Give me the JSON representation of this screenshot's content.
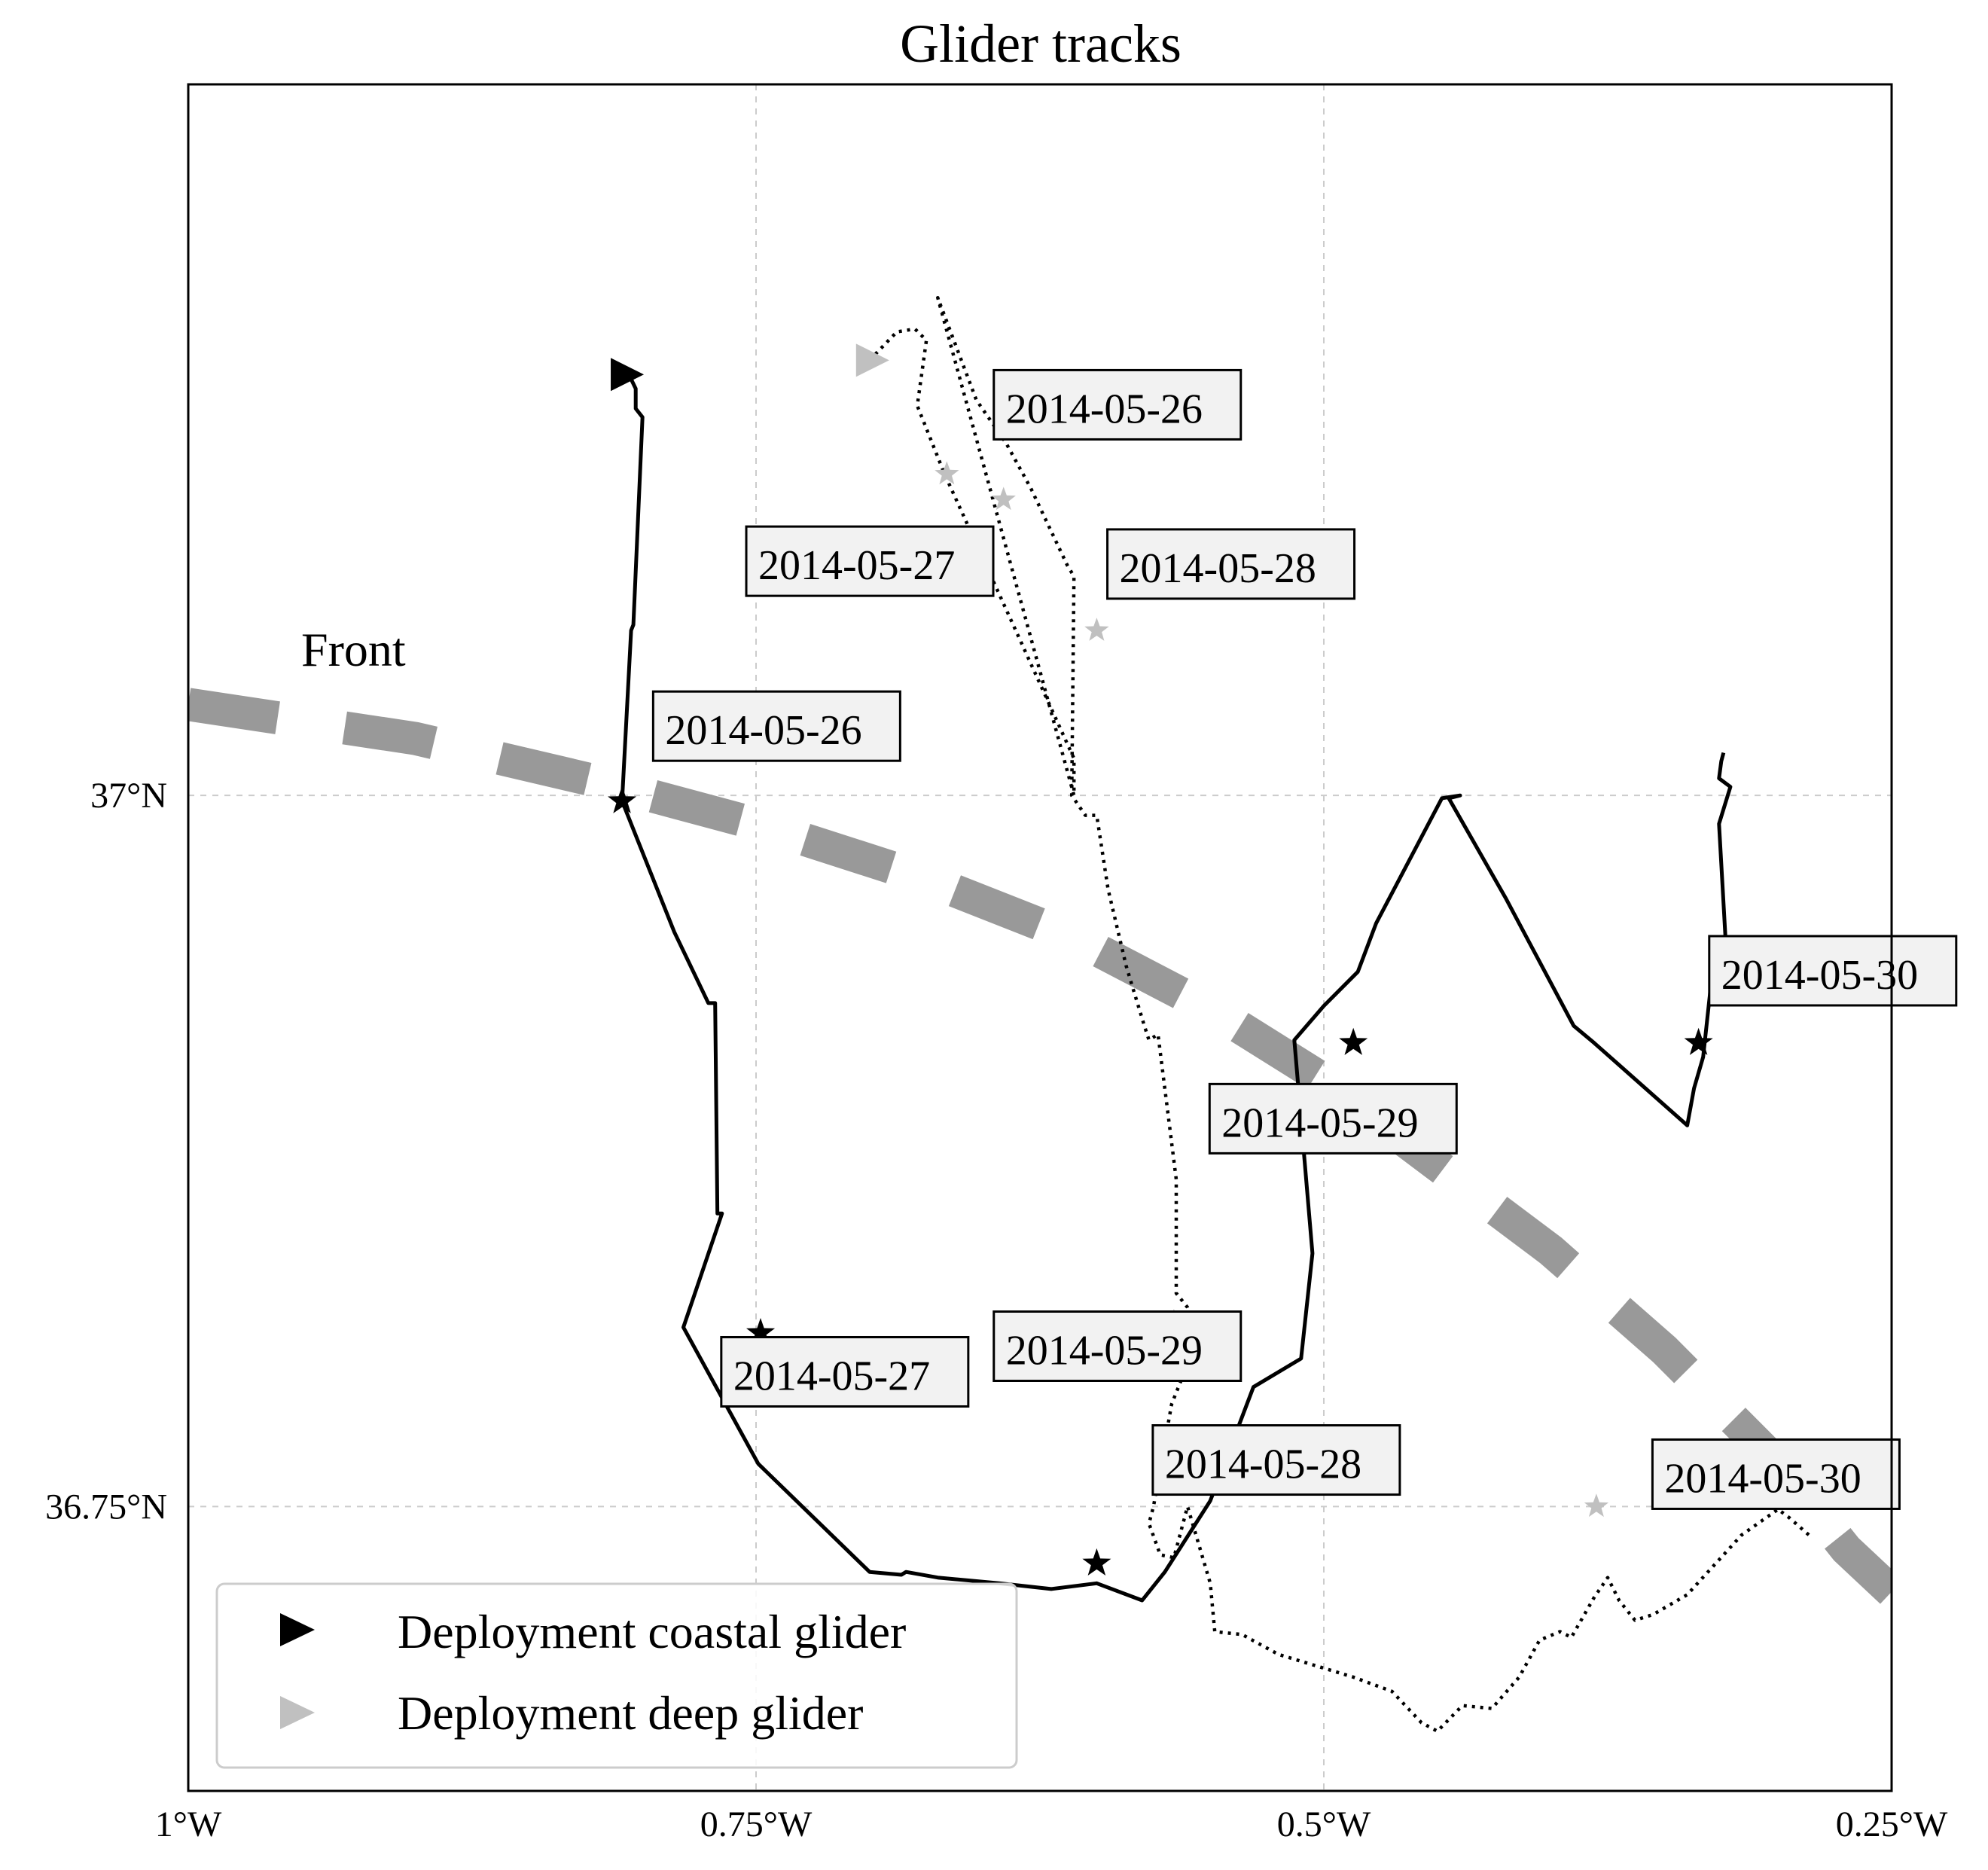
{
  "title": "Glider tracks",
  "xlim": [
    -1.0,
    -0.25
  ],
  "ylim": [
    36.65,
    37.25
  ],
  "x_ticks": [
    {
      "value": -1.0,
      "label": "1°W"
    },
    {
      "value": -0.75,
      "label": "0.75°W"
    },
    {
      "value": -0.5,
      "label": "0.5°W"
    },
    {
      "value": -0.25,
      "label": "0.25°W"
    }
  ],
  "y_ticks": [
    {
      "value": 37.0,
      "label": "37°N"
    },
    {
      "value": 36.75,
      "label": "36.75°N"
    }
  ],
  "grid": true,
  "front_label": "Front",
  "front": {
    "color": "#999999",
    "points": [
      [
        -1.0,
        37.032
      ],
      [
        -0.9,
        37.02
      ],
      [
        -0.82,
        37.005
      ],
      [
        -0.75,
        36.99
      ],
      [
        -0.68,
        36.972
      ],
      [
        -0.61,
        36.95
      ],
      [
        -0.55,
        36.925
      ],
      [
        -0.5,
        36.9
      ],
      [
        -0.45,
        36.87
      ],
      [
        -0.4,
        36.84
      ],
      [
        -0.35,
        36.805
      ],
      [
        -0.3,
        36.765
      ],
      [
        -0.27,
        36.735
      ],
      [
        -0.25,
        36.72
      ]
    ]
  },
  "coastal_track": {
    "name": "coastal glider",
    "style": "solid",
    "color": "#000000",
    "points": [
      [
        -0.81,
        37.148
      ],
      [
        -0.806,
        37.148
      ],
      [
        -0.803,
        37.143
      ],
      [
        -0.803,
        37.136
      ],
      [
        -0.8,
        37.133
      ],
      [
        -0.804,
        37.06
      ],
      [
        -0.805,
        37.058
      ],
      [
        -0.809,
        36.998
      ],
      [
        -0.786,
        36.952
      ],
      [
        -0.771,
        36.927
      ],
      [
        -0.768,
        36.927
      ],
      [
        -0.767,
        36.853
      ],
      [
        -0.765,
        36.853
      ],
      [
        -0.782,
        36.813
      ],
      [
        -0.749,
        36.765
      ],
      [
        -0.7,
        36.727
      ],
      [
        -0.686,
        36.726
      ],
      [
        -0.684,
        36.727
      ],
      [
        -0.67,
        36.725
      ],
      [
        -0.643,
        36.723
      ],
      [
        -0.62,
        36.721
      ],
      [
        -0.6,
        36.723
      ],
      [
        -0.58,
        36.717
      ],
      [
        -0.57,
        36.727
      ],
      [
        -0.55,
        36.752
      ],
      [
        -0.531,
        36.792
      ],
      [
        -0.51,
        36.802
      ],
      [
        -0.505,
        36.839
      ],
      [
        -0.513,
        36.914
      ],
      [
        -0.5,
        36.926
      ],
      [
        -0.485,
        36.938
      ],
      [
        -0.477,
        36.955
      ],
      [
        -0.448,
        36.999
      ],
      [
        -0.44,
        37.0
      ],
      [
        -0.445,
        36.999
      ],
      [
        -0.42,
        36.964
      ],
      [
        -0.39,
        36.919
      ],
      [
        -0.381,
        36.913
      ],
      [
        -0.34,
        36.884
      ],
      [
        -0.337,
        36.897
      ],
      [
        -0.333,
        36.908
      ],
      [
        -0.328,
        36.945
      ],
      [
        -0.323,
        36.948
      ],
      [
        -0.326,
        36.99
      ],
      [
        -0.321,
        37.003
      ],
      [
        -0.326,
        37.006
      ],
      [
        -0.325,
        37.012
      ],
      [
        -0.324,
        37.015
      ]
    ]
  },
  "deep_track": {
    "name": "deep glider",
    "style": "dotted",
    "color": "#000000",
    "points": [
      [
        -0.7,
        37.153
      ],
      [
        -0.688,
        37.163
      ],
      [
        -0.68,
        37.164
      ],
      [
        -0.675,
        37.16
      ],
      [
        -0.679,
        37.137
      ],
      [
        -0.676,
        37.131
      ],
      [
        -0.667,
        37.113
      ],
      [
        -0.61,
        37.013
      ],
      [
        -0.61,
        37.0
      ],
      [
        -0.67,
        37.175
      ],
      [
        -0.653,
        37.139
      ],
      [
        -0.64,
        37.124
      ],
      [
        -0.629,
        37.108
      ],
      [
        -0.613,
        37.081
      ],
      [
        -0.61,
        37.077
      ],
      [
        -0.611,
        37.0
      ],
      [
        -0.605,
        36.993
      ],
      [
        -0.6,
        36.993
      ],
      [
        -0.595,
        36.967
      ],
      [
        -0.587,
        36.94
      ],
      [
        -0.584,
        36.932
      ],
      [
        -0.579,
        36.919
      ],
      [
        -0.577,
        36.914
      ],
      [
        -0.573,
        36.916
      ],
      [
        -0.565,
        36.865
      ],
      [
        -0.565,
        36.825
      ],
      [
        -0.56,
        36.82
      ],
      [
        -0.554,
        36.81
      ],
      [
        -0.56,
        36.8
      ],
      [
        -0.567,
        36.786
      ],
      [
        -0.575,
        36.75
      ],
      [
        -0.577,
        36.744
      ],
      [
        -0.572,
        36.733
      ],
      [
        -0.566,
        36.732
      ],
      [
        -0.56,
        36.75
      ],
      [
        -0.55,
        36.723
      ],
      [
        -0.548,
        36.706
      ],
      [
        -0.536,
        36.705
      ],
      [
        -0.52,
        36.698
      ],
      [
        -0.487,
        36.69
      ],
      [
        -0.47,
        36.685
      ],
      [
        -0.457,
        36.674
      ],
      [
        -0.45,
        36.671
      ],
      [
        -0.439,
        36.68
      ],
      [
        -0.426,
        36.679
      ],
      [
        -0.414,
        36.69
      ],
      [
        -0.405,
        36.703
      ],
      [
        -0.396,
        36.706
      ],
      [
        -0.391,
        36.704
      ],
      [
        -0.381,
        36.718
      ],
      [
        -0.375,
        36.725
      ],
      [
        -0.37,
        36.717
      ],
      [
        -0.363,
        36.71
      ],
      [
        -0.355,
        36.712
      ],
      [
        -0.34,
        36.719
      ],
      [
        -0.316,
        36.74
      ],
      [
        -0.3,
        36.749
      ],
      [
        -0.295,
        36.746
      ],
      [
        -0.285,
        36.739
      ]
    ]
  },
  "coastal_markers": [
    {
      "lon": -0.809,
      "lat": 36.998,
      "label": "2014-05-26",
      "label_lon": -0.79,
      "label_lat": 37.018
    },
    {
      "lon": -0.748,
      "lat": 36.811,
      "label": "2014-05-27",
      "label_lon": -0.76,
      "label_lat": 36.791
    },
    {
      "lon": -0.6,
      "lat": 36.73,
      "label": "2014-05-28",
      "label_lon": -0.57,
      "label_lat": 36.76
    },
    {
      "lon": -0.487,
      "lat": 36.913,
      "label": "2014-05-29",
      "label_lon": -0.545,
      "label_lat": 36.88
    },
    {
      "lon": -0.335,
      "lat": 36.913,
      "label": "2014-05-30",
      "label_lon": -0.325,
      "label_lat": 36.932
    }
  ],
  "deep_markers": [
    {
      "lon": -0.641,
      "lat": 37.104,
      "label": "2014-05-26",
      "label_lon": -0.64,
      "label_lat": 37.131
    },
    {
      "lon": -0.666,
      "lat": 37.113,
      "label": "2014-05-27",
      "label_lon": -0.749,
      "label_lat": 37.076
    },
    {
      "lon": -0.6,
      "lat": 37.058,
      "label": "2014-05-28",
      "label_lon": -0.59,
      "label_lat": 37.075
    },
    {
      "lon": -0.566,
      "lat": 36.815,
      "label": "2014-05-29",
      "label_lon": -0.64,
      "label_lat": 36.8
    },
    {
      "lon": -0.38,
      "lat": 36.75,
      "label": "2014-05-30",
      "label_lon": -0.35,
      "label_lat": 36.755
    }
  ],
  "deployment": {
    "coastal": {
      "lon": -0.81,
      "lat": 37.148,
      "color": "#000000"
    },
    "deep": {
      "lon": -0.7,
      "lat": 37.153,
      "color": "#c0c0c0"
    }
  },
  "legend": {
    "placement": "bottom-left",
    "entries": [
      {
        "label": "Deployment coastal glider",
        "color": "#000000"
      },
      {
        "label": "Deployment deep glider",
        "color": "#c0c0c0"
      }
    ]
  }
}
